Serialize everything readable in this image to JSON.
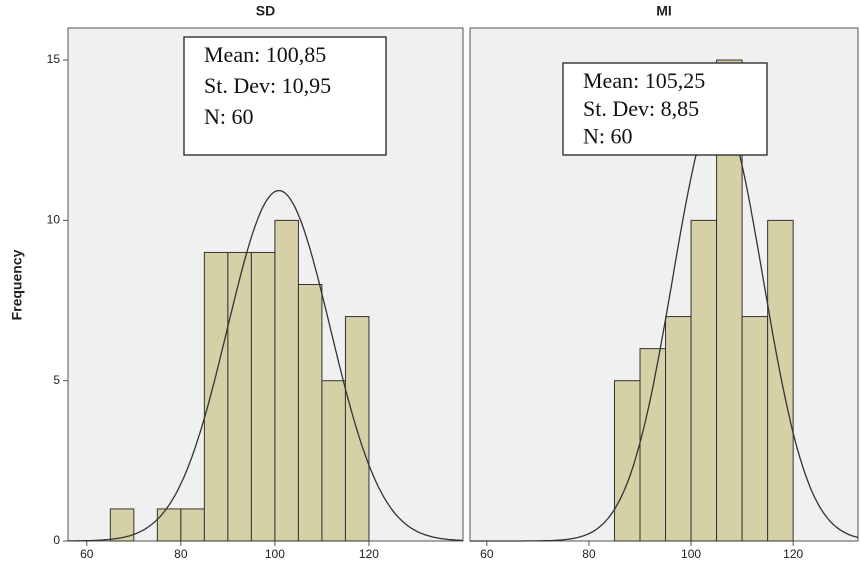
{
  "chart_data": [
    {
      "type": "histogram",
      "title": "SD",
      "ylabel": "Frequency",
      "bins": [
        65,
        70,
        75,
        80,
        85,
        90,
        95,
        100,
        105,
        110,
        115,
        120
      ],
      "values": [
        1,
        0,
        1,
        1,
        9,
        9,
        9,
        10,
        8,
        5,
        7
      ],
      "color": "#d5d0a6",
      "xlim": [
        56,
        140
      ],
      "xticks": [
        60,
        80,
        100,
        120
      ],
      "ylim": [
        0,
        16
      ],
      "yticks": [
        0,
        5,
        10,
        15
      ],
      "stats": [
        {
          "value": 100.85,
          "label": "Mean: 100,85"
        },
        {
          "value": 10.95,
          "label": "St. Dev: 10,95"
        },
        {
          "value": 60,
          "label": "N: 60"
        }
      ]
    },
    {
      "type": "histogram",
      "title": "MI",
      "bins": [
        85,
        90,
        95,
        100,
        105,
        110,
        115,
        120
      ],
      "values": [
        5,
        6,
        7,
        10,
        15,
        7,
        10
      ],
      "color": "#d5d0a6",
      "xlim": [
        56.7,
        132.7
      ],
      "xticks": [
        60,
        80,
        100,
        120
      ],
      "ylim": [
        0,
        16
      ],
      "stats": [
        {
          "value": 105.25,
          "label": "Mean: 105,25"
        },
        {
          "value": 8.85,
          "label": "St. Dev: 8,85"
        },
        {
          "value": 60,
          "label": "N: 60"
        }
      ]
    }
  ]
}
